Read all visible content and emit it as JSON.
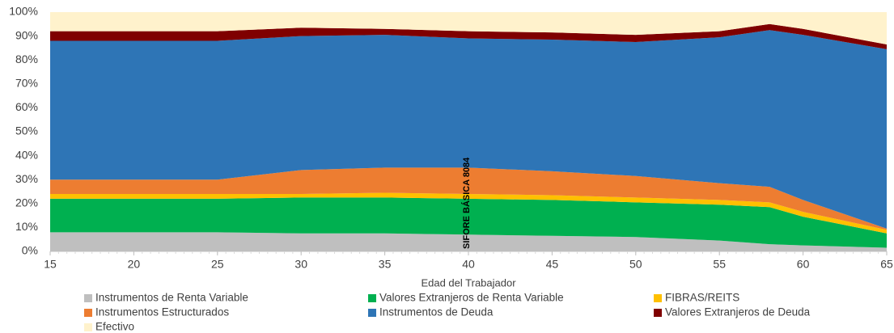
{
  "chart_data": {
    "type": "stacked_area",
    "x_label": "Edad del Trabajador",
    "annotation": "SIFORE BÁSICA 8084",
    "x": [
      15,
      25,
      30,
      35,
      40,
      45,
      50,
      55,
      58,
      60,
      65
    ],
    "xlim": [
      15,
      65
    ],
    "xticks": [
      15,
      20,
      25,
      30,
      35,
      40,
      45,
      50,
      55,
      60,
      65
    ],
    "ylim": [
      0,
      100
    ],
    "yticks": [
      {
        "value": 0,
        "label": "0%"
      },
      {
        "value": 10,
        "label": "10%"
      },
      {
        "value": 20,
        "label": "20%"
      },
      {
        "value": 30,
        "label": "30%"
      },
      {
        "value": 40,
        "label": "40%"
      },
      {
        "value": 50,
        "label": "50%"
      },
      {
        "value": 60,
        "label": "60%"
      },
      {
        "value": 70,
        "label": "70%"
      },
      {
        "value": 80,
        "label": "80%"
      },
      {
        "value": 90,
        "label": "90%"
      },
      {
        "value": 100,
        "label": "100%"
      }
    ],
    "series": [
      {
        "name": "Instrumentos de Renta Variable",
        "color": "#bfbfbf",
        "values": [
          8,
          8,
          7.5,
          7.5,
          7,
          6.5,
          6,
          4.5,
          3,
          2.5,
          1.5
        ]
      },
      {
        "name": "Valores Extranjeros de Renta Variable",
        "color": "#00b050",
        "values": [
          14,
          14,
          15,
          15,
          15,
          15,
          14.5,
          15,
          15.5,
          12,
          6
        ]
      },
      {
        "name": "FIBRAS/REITS",
        "color": "#ffc000",
        "values": [
          2,
          2,
          1.5,
          2,
          2,
          2,
          2,
          2,
          2,
          2,
          1.5
        ]
      },
      {
        "name": "Instrumentos Estructurados",
        "color": "#ed7d31",
        "values": [
          6,
          6,
          10,
          10.5,
          11,
          10,
          9,
          7,
          6.5,
          5,
          0.5
        ]
      },
      {
        "name": "Instrumentos de Deuda",
        "color": "#2e75b6",
        "values": [
          58,
          58,
          56,
          55.5,
          54,
          55,
          56,
          61,
          65.5,
          69,
          75
        ]
      },
      {
        "name": "Valores Extranjeros de Deuda",
        "color": "#7f0000",
        "values": [
          4,
          4,
          3.5,
          2.5,
          3,
          3,
          3,
          2.5,
          2.5,
          2.5,
          2
        ]
      },
      {
        "name": "Efectivo",
        "color": "#fff2cc",
        "values": [
          8,
          8,
          6.5,
          7,
          8,
          8.5,
          9.5,
          8,
          5,
          7,
          13.5
        ]
      }
    ]
  }
}
